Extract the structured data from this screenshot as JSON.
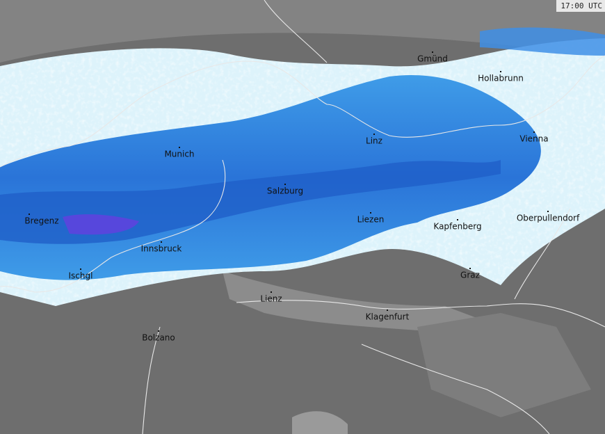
{
  "timestamp": "17:00 UTC",
  "cities": [
    {
      "name": "Gmünd"
    },
    {
      "name": "Hollabrunn"
    },
    {
      "name": "Linz"
    },
    {
      "name": "Vienna"
    },
    {
      "name": "Munich"
    },
    {
      "name": "Salzburg"
    },
    {
      "name": "Bregenz"
    },
    {
      "name": "Liezen"
    },
    {
      "name": "Kapfenberg"
    },
    {
      "name": "Oberpullendorf"
    },
    {
      "name": "Innsbruck"
    },
    {
      "name": "Ischgl"
    },
    {
      "name": "Graz"
    },
    {
      "name": "Lienz"
    },
    {
      "name": "Klagenfurt"
    },
    {
      "name": "Bolzano"
    }
  ]
}
